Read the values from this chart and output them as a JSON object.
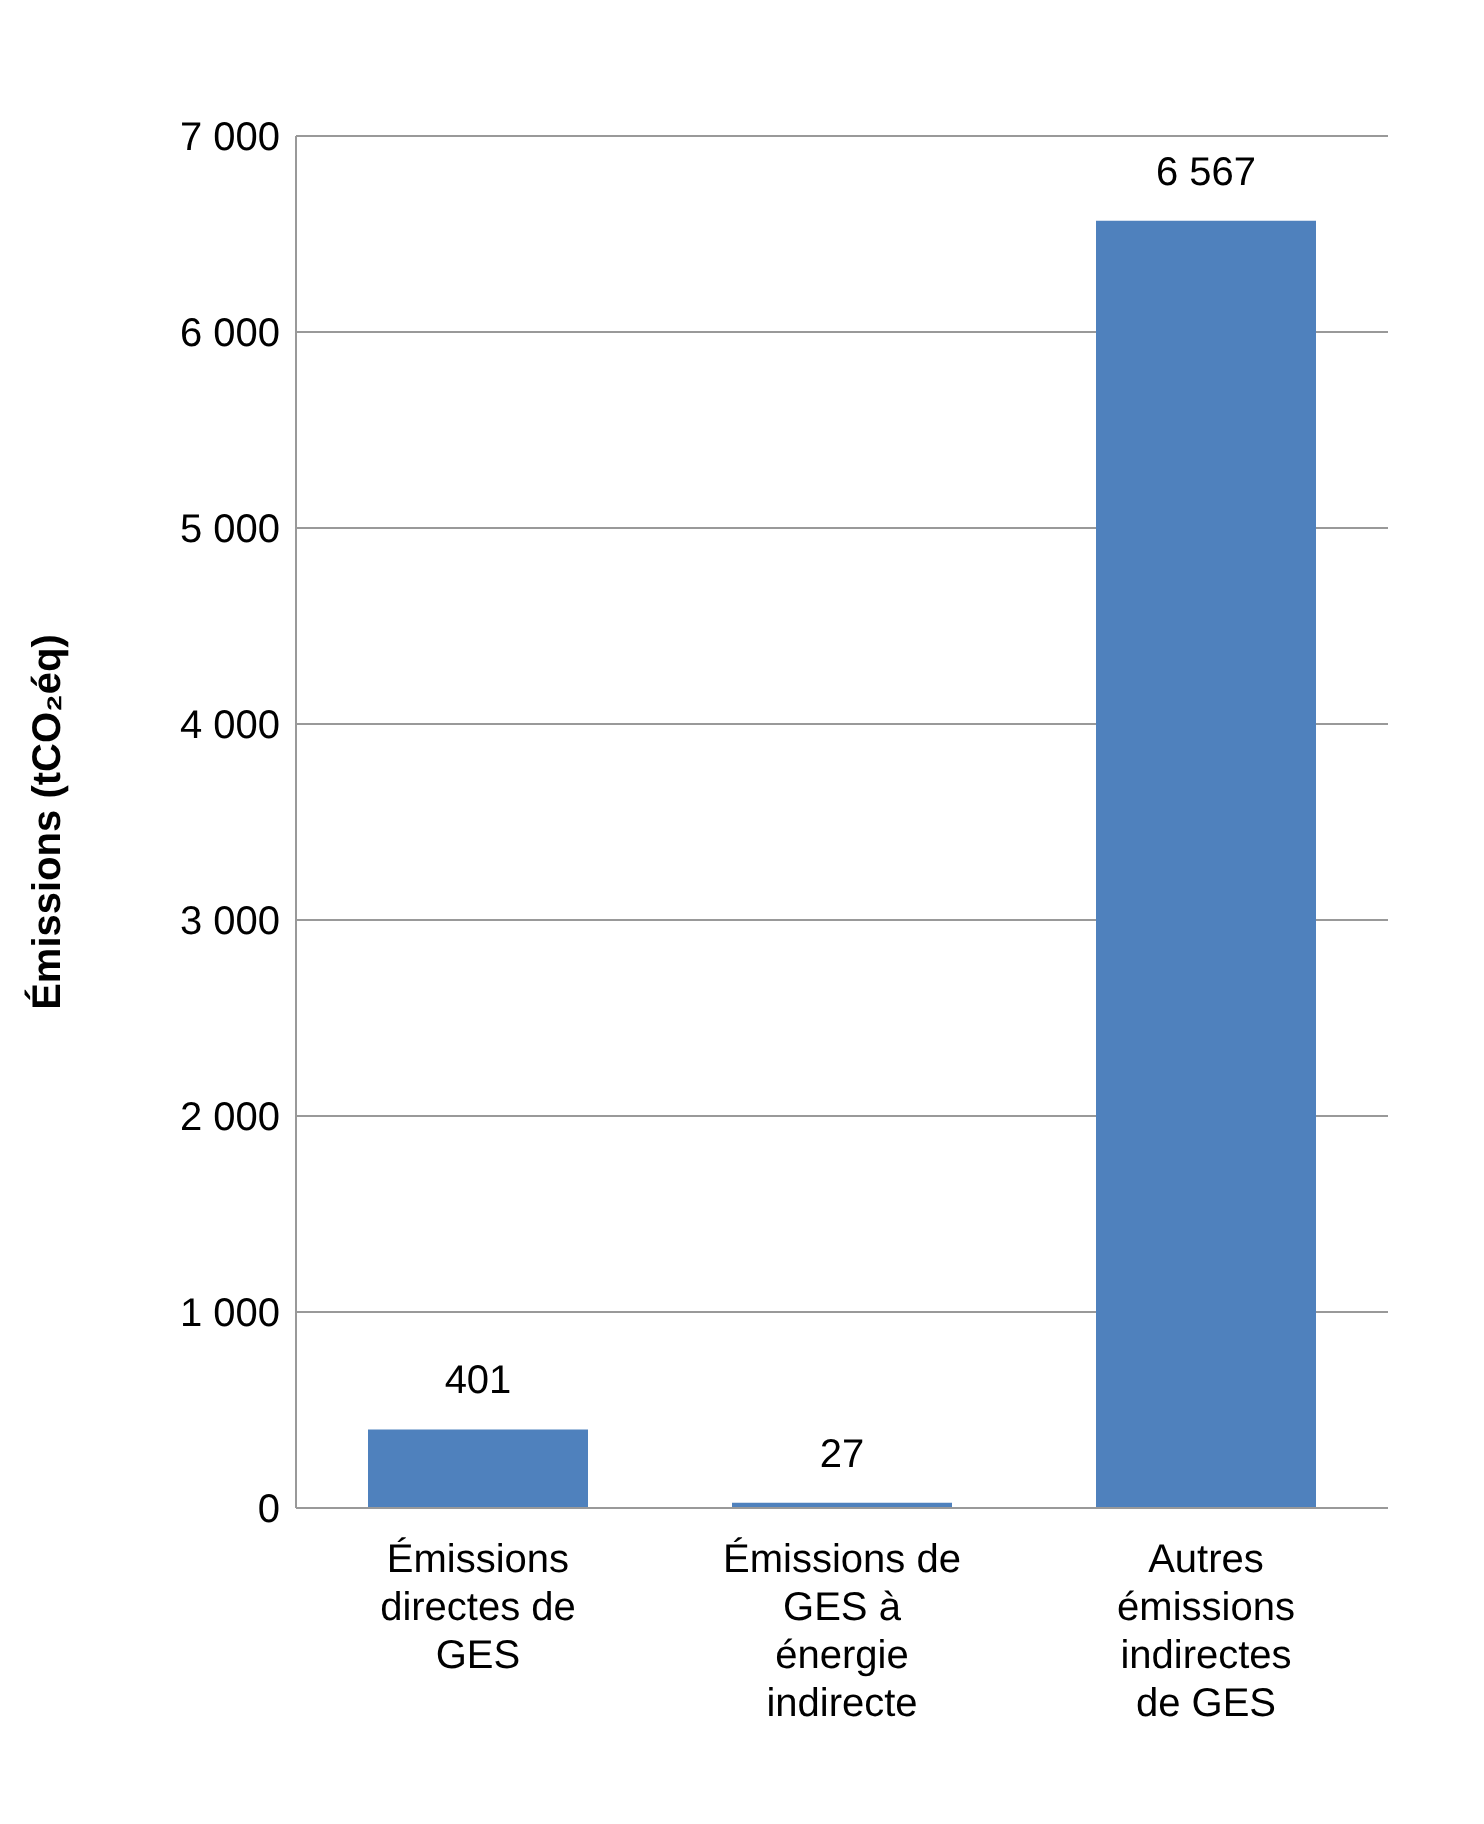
{
  "chart_data": {
    "type": "bar",
    "ylabel": "Émissions (tCO₂éq)",
    "categories": [
      "Émissions directes de GES",
      "Émissions de GES à énergie indirecte",
      "Autres émissions indirectes de GES"
    ],
    "values": [
      401,
      27,
      6567
    ],
    "value_labels": [
      "401",
      "27",
      "6 567"
    ],
    "color": "#4f81bd",
    "ylim": [
      0,
      7000
    ],
    "yticks": [
      {
        "value": 0,
        "label": "0"
      },
      {
        "value": 1000,
        "label": "1 000"
      },
      {
        "value": 2000,
        "label": "2 000"
      },
      {
        "value": 3000,
        "label": "3 000"
      },
      {
        "value": 4000,
        "label": "4 000"
      },
      {
        "value": 5000,
        "label": "5 000"
      },
      {
        "value": 6000,
        "label": "6 000"
      },
      {
        "value": 7000,
        "label": "7 000"
      }
    ],
    "grid": "y"
  }
}
